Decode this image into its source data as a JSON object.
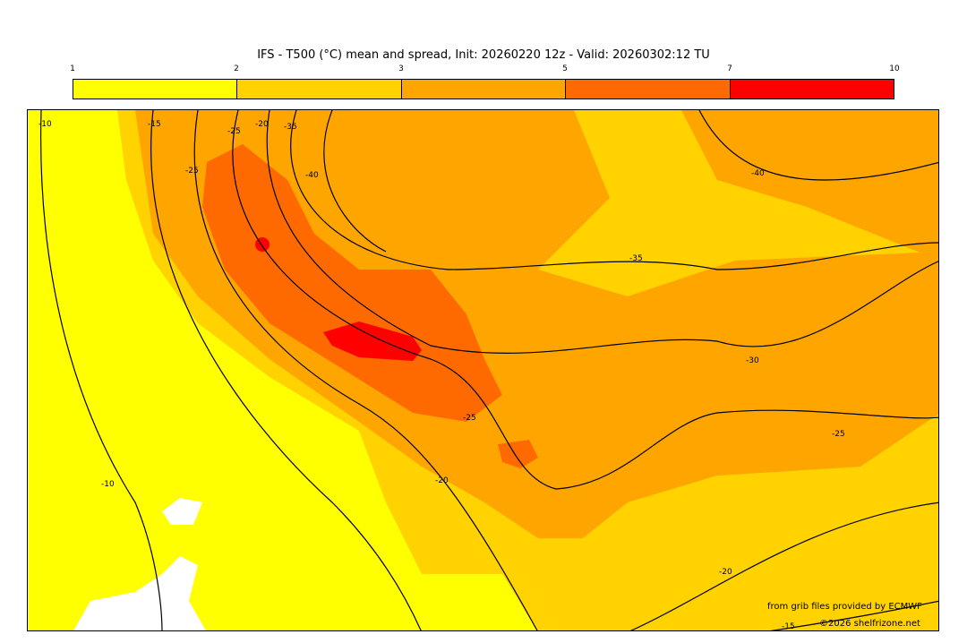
{
  "title": "IFS - T500 (°C) mean and spread, Init: 20260220 12z - Valid: 20260302:12 TU",
  "colorbar": {
    "ticks": [
      "1",
      "2",
      "3",
      "5",
      "7",
      "10"
    ],
    "colors": [
      "#ffff00",
      "#ffd200",
      "#ffa500",
      "#ff6a00",
      "#ff0000"
    ]
  },
  "contour_labels": [
    "-10",
    "-15",
    "-25",
    "-20",
    "-35",
    "-25",
    "-40",
    "-40",
    "-35",
    "-30",
    "-25",
    "-25",
    "-20",
    "-10",
    "-20",
    "-15"
  ],
  "credits": {
    "source": "from grib files provided by ECMWF",
    "copyright": "©2026 shelfrizone.net"
  }
}
